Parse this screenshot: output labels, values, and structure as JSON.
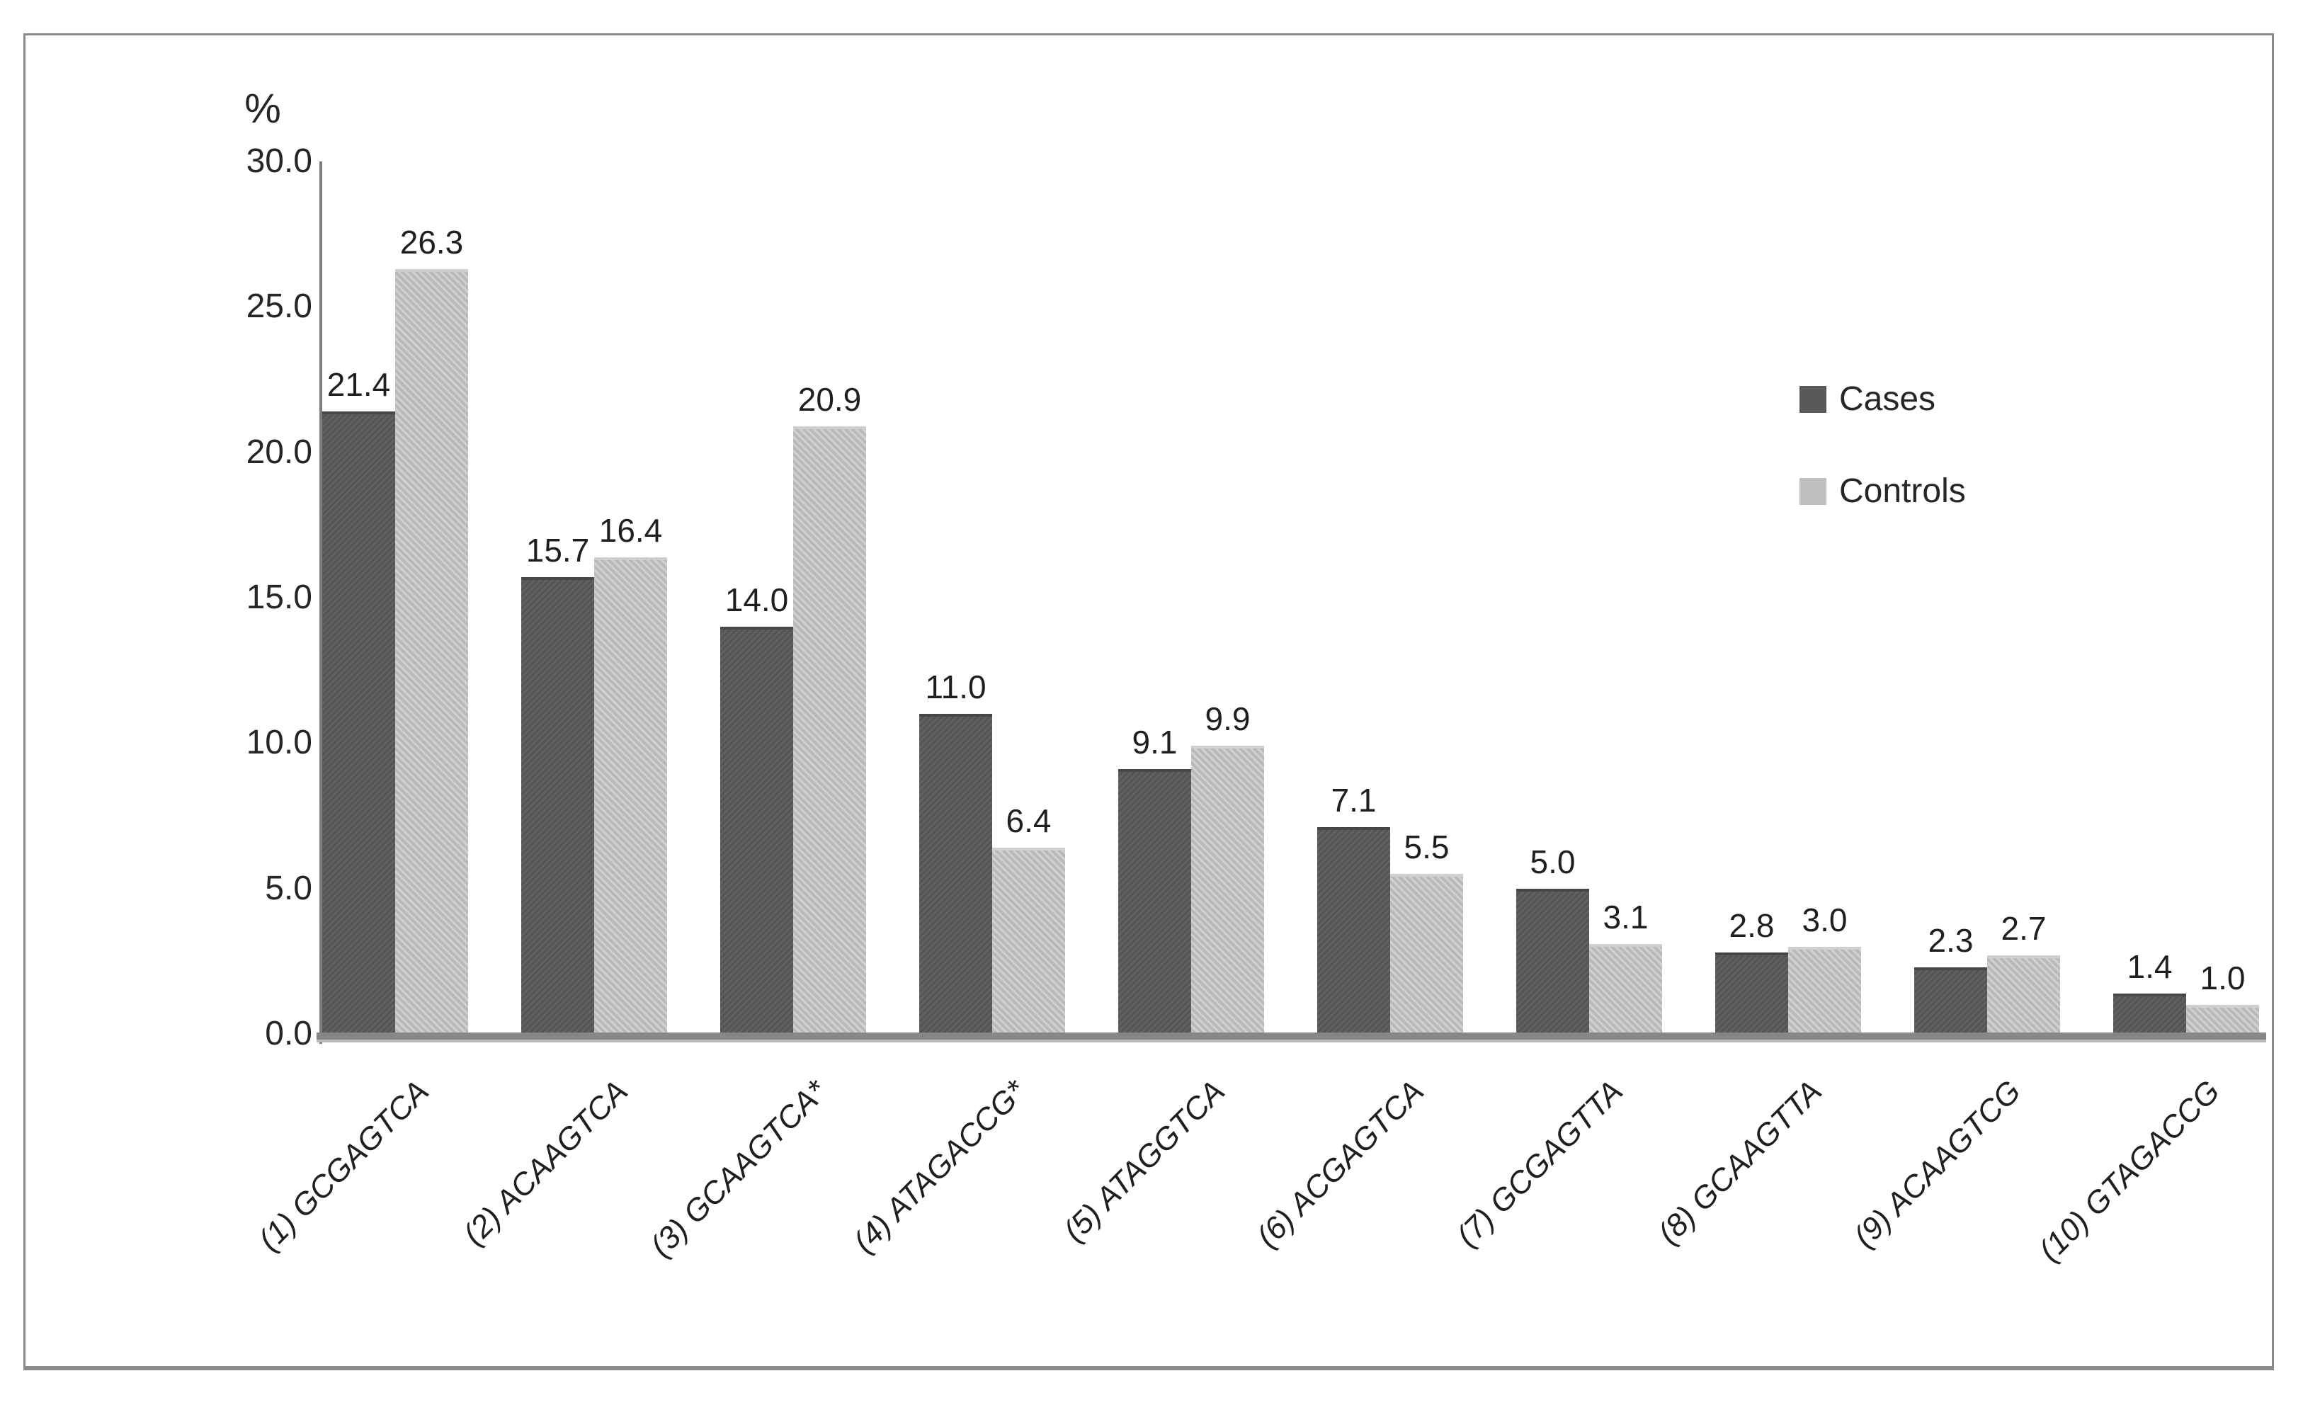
{
  "chart_data": {
    "type": "bar",
    "title": "",
    "ylabel": "%",
    "xlabel": "",
    "ylim": [
      0,
      30
    ],
    "grid": false,
    "legend_position": "right",
    "yticks": [
      "30.0",
      "25.0",
      "20.0",
      "15.0",
      "10.0",
      "5.0",
      "0.0"
    ],
    "categories": [
      "(1) GCGAGTCA",
      "(2) ACAAGTCA",
      "(3) GCAAGTCA*",
      "(4) ATAGACCG*",
      "(5) ATAGGTCA",
      "(6) ACGAGTCA",
      "(7) GCGAGTTA",
      "(8) GCAAGTTA",
      "(9) ACAAGTCG",
      "(10) GTAGACCG"
    ],
    "series": [
      {
        "name": "Cases",
        "color": "#595959",
        "values": [
          21.4,
          15.7,
          14.0,
          11.0,
          9.1,
          7.1,
          5.0,
          2.8,
          2.3,
          1.4
        ]
      },
      {
        "name": "Controls",
        "color": "#bfbfbf",
        "values": [
          26.3,
          16.4,
          20.9,
          6.4,
          9.9,
          5.5,
          3.1,
          3.0,
          2.7,
          1.0
        ]
      }
    ],
    "colors": {
      "axis_line": "#7d7d7d",
      "frame_border": "#8a8a8a",
      "text": "#262626"
    }
  }
}
